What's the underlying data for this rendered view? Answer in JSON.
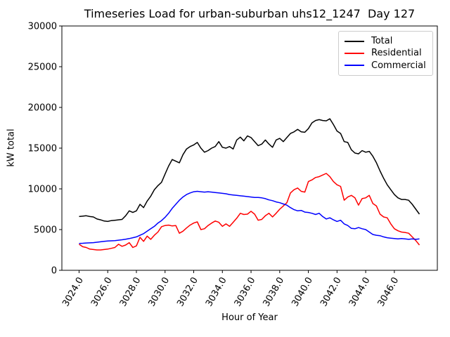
{
  "chart_data": {
    "type": "line",
    "title": "Timeseries Load for urban-suburban uhs12_1247  Day 127",
    "xlabel": "Hour of Year",
    "ylabel": "kW total",
    "xlim": [
      3022.8,
      3049.0
    ],
    "ylim": [
      0,
      30000
    ],
    "x_ticks": [
      3024.0,
      3026.0,
      3028.0,
      3030.0,
      3032.0,
      3034.0,
      3036.0,
      3038.0,
      3040.0,
      3042.0,
      3044.0,
      3046.0
    ],
    "x_tick_decimals": 1,
    "x_tick_rotation": 60,
    "y_ticks": [
      0,
      5000,
      10000,
      15000,
      20000,
      25000,
      30000
    ],
    "grid": false,
    "legend_position": "upper right",
    "x_start": 3024.0,
    "x_step": 0.25,
    "series": [
      {
        "name": "Total",
        "color": "#000000",
        "values": [
          6600,
          6650,
          6700,
          6600,
          6550,
          6300,
          6200,
          6050,
          6000,
          6100,
          6150,
          6200,
          6250,
          6700,
          7300,
          7100,
          7300,
          8100,
          7700,
          8500,
          9100,
          9900,
          10400,
          10800,
          11800,
          12800,
          13600,
          13400,
          13200,
          14200,
          14900,
          15200,
          15400,
          15700,
          15000,
          14500,
          14700,
          15000,
          15200,
          15800,
          15100,
          15000,
          15200,
          14900,
          16000,
          16350,
          15900,
          16500,
          16300,
          15800,
          15300,
          15500,
          16000,
          15500,
          15100,
          16000,
          16200,
          15800,
          16300,
          16800,
          17000,
          17300,
          17000,
          16950,
          17400,
          18100,
          18400,
          18500,
          18400,
          18350,
          18600,
          17900,
          17100,
          16800,
          15800,
          15700,
          14800,
          14400,
          14300,
          14700,
          14500,
          14600,
          14000,
          13200,
          12200,
          11300,
          10500,
          9900,
          9300,
          8900,
          8700,
          8700,
          8600,
          8100,
          7500,
          6900
        ]
      },
      {
        "name": "Residential",
        "color": "#ff0000",
        "values": [
          3200,
          2900,
          2800,
          2600,
          2550,
          2500,
          2500,
          2550,
          2600,
          2700,
          2800,
          3200,
          2950,
          3100,
          3400,
          2800,
          3000,
          4050,
          3550,
          4200,
          3800,
          4300,
          4700,
          5350,
          5500,
          5550,
          5450,
          5500,
          4550,
          4800,
          5200,
          5550,
          5800,
          5950,
          5000,
          5100,
          5500,
          5800,
          6050,
          5900,
          5400,
          5700,
          5400,
          5900,
          6400,
          7000,
          6850,
          6900,
          7250,
          6900,
          6150,
          6250,
          6700,
          7000,
          6550,
          7000,
          7500,
          7900,
          8300,
          9500,
          9900,
          10100,
          9700,
          9600,
          10900,
          11100,
          11400,
          11500,
          11700,
          11900,
          11500,
          10900,
          10500,
          10300,
          8600,
          9000,
          9200,
          8900,
          8000,
          8800,
          8900,
          9200,
          8200,
          7900,
          6900,
          6550,
          6450,
          5700,
          5100,
          4850,
          4700,
          4650,
          4550,
          4100,
          3650,
          3100
        ]
      },
      {
        "name": "Commercial",
        "color": "#0000ff",
        "values": [
          3300,
          3320,
          3350,
          3370,
          3400,
          3450,
          3500,
          3550,
          3600,
          3620,
          3650,
          3700,
          3750,
          3820,
          3900,
          4000,
          4100,
          4300,
          4500,
          4800,
          5100,
          5400,
          5800,
          6100,
          6500,
          7000,
          7600,
          8100,
          8600,
          9000,
          9300,
          9500,
          9650,
          9700,
          9650,
          9600,
          9650,
          9600,
          9550,
          9500,
          9450,
          9400,
          9300,
          9250,
          9200,
          9150,
          9100,
          9050,
          9000,
          8950,
          8950,
          8900,
          8800,
          8650,
          8550,
          8400,
          8300,
          8150,
          8000,
          7700,
          7450,
          7300,
          7350,
          7150,
          7100,
          7000,
          6850,
          7000,
          6600,
          6300,
          6450,
          6200,
          6000,
          6150,
          5700,
          5500,
          5150,
          5100,
          5250,
          5100,
          5000,
          4700,
          4400,
          4300,
          4250,
          4100,
          4000,
          3950,
          3900,
          3850,
          3900,
          3850,
          3800,
          3850,
          3800,
          3850
        ]
      }
    ]
  }
}
